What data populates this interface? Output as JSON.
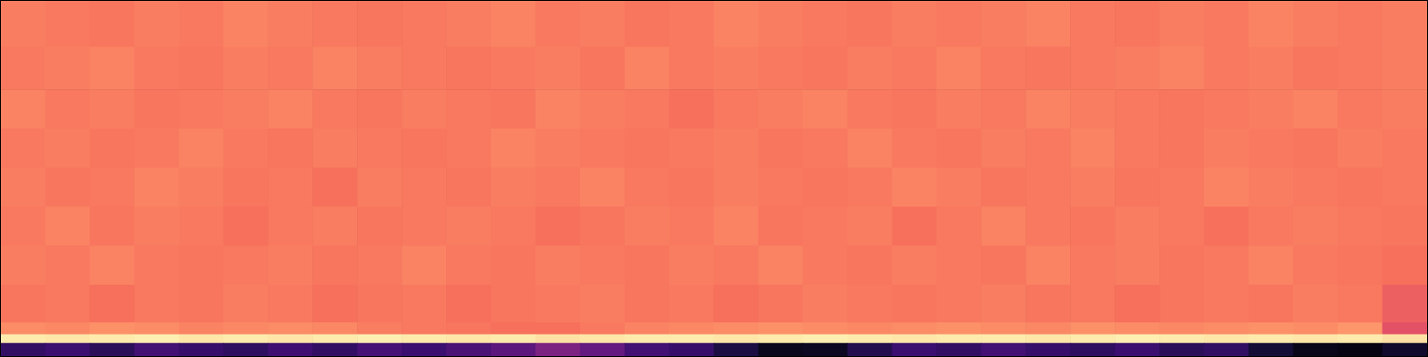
{
  "chart_data": {
    "type": "heatmap",
    "categories": [
      null,
      null,
      null,
      null,
      null,
      null,
      null,
      null,
      null,
      null,
      null,
      null,
      null,
      null,
      null,
      null,
      null,
      null,
      null,
      null,
      null,
      null,
      null,
      null,
      null,
      null,
      null,
      null,
      null,
      null,
      null,
      null
    ],
    "y_bins": [
      0,
      0.036,
      0.061,
      0.094,
      0.2,
      0.31,
      0.42,
      0.53,
      0.64,
      0.75,
      0.87,
      1.0
    ],
    "vlim": [
      0,
      1
    ],
    "tick_labels": false,
    "cells": [
      [
        0.18,
        0.2,
        0.16,
        0.22,
        0.19,
        0.17,
        0.21,
        0.18,
        0.23,
        0.2,
        0.24,
        0.28,
        0.36,
        0.3,
        0.22,
        0.19,
        0.12,
        0.05,
        0.06,
        0.14,
        0.2,
        0.18,
        0.22,
        0.19,
        0.17,
        0.2,
        0.16,
        0.18,
        0.1,
        0.04,
        0.03,
        0.08
      ],
      [
        0.96,
        0.95,
        0.96,
        0.97,
        0.95,
        0.96,
        0.95,
        0.96,
        0.97,
        0.96,
        0.95,
        0.96,
        0.94,
        0.95,
        0.96,
        0.96,
        0.95,
        0.96,
        0.97,
        0.96,
        0.95,
        0.96,
        0.96,
        0.95,
        0.96,
        0.97,
        0.96,
        0.95,
        0.96,
        0.95,
        0.96,
        0.94
      ],
      [
        0.76,
        0.75,
        0.77,
        0.76,
        0.74,
        0.75,
        0.76,
        0.75,
        0.73,
        0.72,
        0.71,
        0.7,
        0.7,
        0.72,
        0.74,
        0.75,
        0.76,
        0.77,
        0.76,
        0.75,
        0.76,
        0.77,
        0.76,
        0.75,
        0.77,
        0.76,
        0.75,
        0.76,
        0.77,
        0.76,
        0.78,
        0.62
      ],
      [
        0.71,
        0.72,
        0.7,
        0.72,
        0.71,
        0.73,
        0.72,
        0.7,
        0.71,
        0.72,
        0.7,
        0.71,
        0.72,
        0.73,
        0.71,
        0.72,
        0.7,
        0.71,
        0.73,
        0.72,
        0.71,
        0.72,
        0.73,
        0.71,
        0.72,
        0.7,
        0.71,
        0.72,
        0.71,
        0.73,
        0.72,
        0.66
      ],
      [
        0.73,
        0.72,
        0.74,
        0.72,
        0.71,
        0.72,
        0.73,
        0.71,
        0.72,
        0.74,
        0.72,
        0.71,
        0.73,
        0.72,
        0.71,
        0.73,
        0.72,
        0.74,
        0.72,
        0.71,
        0.73,
        0.72,
        0.71,
        0.74,
        0.72,
        0.73,
        0.71,
        0.72,
        0.74,
        0.72,
        0.71,
        0.7
      ],
      [
        0.72,
        0.74,
        0.71,
        0.73,
        0.72,
        0.7,
        0.72,
        0.73,
        0.71,
        0.72,
        0.73,
        0.72,
        0.7,
        0.71,
        0.73,
        0.72,
        0.74,
        0.71,
        0.72,
        0.73,
        0.7,
        0.72,
        0.74,
        0.72,
        0.71,
        0.73,
        0.72,
        0.7,
        0.72,
        0.73,
        0.72,
        0.71
      ],
      [
        0.73,
        0.71,
        0.72,
        0.74,
        0.73,
        0.71,
        0.72,
        0.7,
        0.73,
        0.72,
        0.71,
        0.73,
        0.72,
        0.74,
        0.72,
        0.71,
        0.73,
        0.72,
        0.71,
        0.72,
        0.74,
        0.73,
        0.71,
        0.72,
        0.73,
        0.71,
        0.72,
        0.74,
        0.73,
        0.72,
        0.71,
        0.72
      ],
      [
        0.72,
        0.73,
        0.71,
        0.72,
        0.74,
        0.72,
        0.71,
        0.73,
        0.72,
        0.71,
        0.72,
        0.74,
        0.73,
        0.72,
        0.71,
        0.72,
        0.73,
        0.71,
        0.72,
        0.74,
        0.72,
        0.71,
        0.73,
        0.72,
        0.74,
        0.72,
        0.71,
        0.73,
        0.72,
        0.71,
        0.73,
        0.72
      ],
      [
        0.74,
        0.72,
        0.73,
        0.71,
        0.72,
        0.73,
        0.74,
        0.72,
        0.71,
        0.73,
        0.72,
        0.71,
        0.74,
        0.73,
        0.72,
        0.7,
        0.72,
        0.73,
        0.74,
        0.72,
        0.71,
        0.73,
        0.72,
        0.74,
        0.73,
        0.72,
        0.71,
        0.72,
        0.73,
        0.74,
        0.72,
        0.73
      ],
      [
        0.72,
        0.73,
        0.74,
        0.72,
        0.71,
        0.73,
        0.72,
        0.74,
        0.73,
        0.72,
        0.71,
        0.72,
        0.73,
        0.71,
        0.74,
        0.72,
        0.73,
        0.72,
        0.71,
        0.73,
        0.72,
        0.74,
        0.72,
        0.71,
        0.72,
        0.73,
        0.74,
        0.72,
        0.73,
        0.71,
        0.72,
        0.73
      ],
      [
        0.73,
        0.72,
        0.71,
        0.73,
        0.72,
        0.74,
        0.73,
        0.72,
        0.71,
        0.72,
        0.73,
        0.74,
        0.72,
        0.73,
        0.71,
        0.72,
        0.74,
        0.73,
        0.72,
        0.71,
        0.73,
        0.72,
        0.73,
        0.74,
        0.72,
        0.71,
        0.73,
        0.72,
        0.74,
        0.73,
        0.72,
        0.73
      ]
    ]
  }
}
